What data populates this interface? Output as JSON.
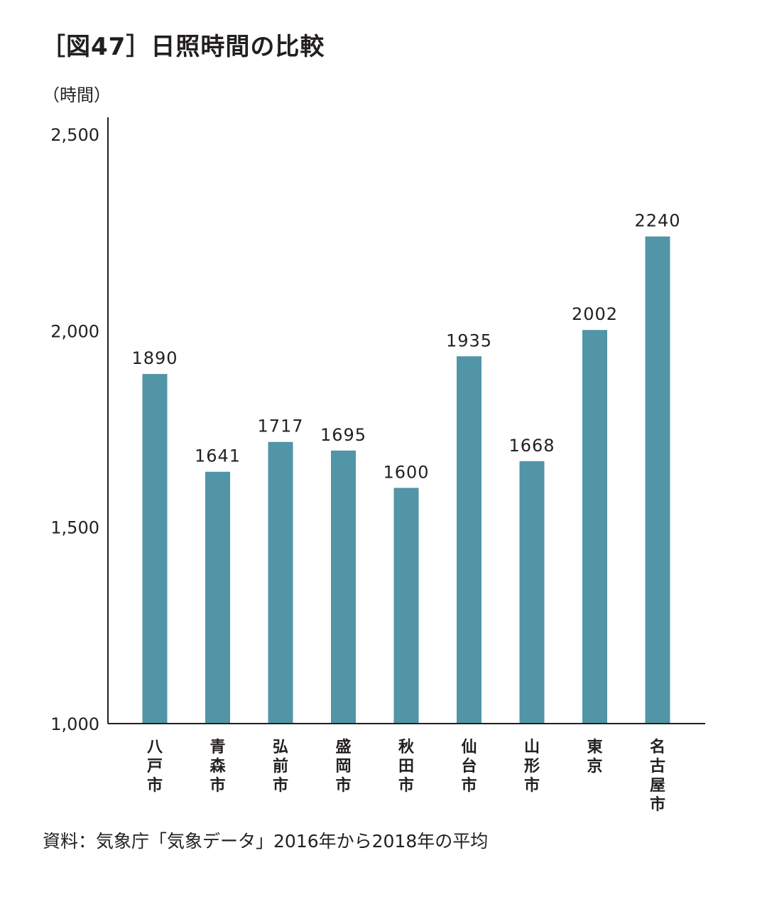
{
  "title": "［図47］日照時間の比較",
  "source": "資料：気象庁「気象データ」2016年から2018年の平均",
  "colors": {
    "bar": "#5195a6",
    "axis": "#231f20",
    "text": "#231f20"
  },
  "chart_data": {
    "type": "bar",
    "title": "［図47］日照時間の比較",
    "ylabel": "（時間）",
    "xlabel": "",
    "ylim": [
      1000,
      2500
    ],
    "yticks": [
      1000,
      1500,
      2000,
      2500
    ],
    "ytick_labels": [
      "1,000",
      "1,500",
      "2,000",
      "2,500"
    ],
    "categories": [
      "八戸市",
      "青森市",
      "弘前市",
      "盛岡市",
      "秋田市",
      "仙台市",
      "山形市",
      "東京",
      "名古屋市"
    ],
    "values": [
      1890,
      1641,
      1717,
      1695,
      1600,
      1935,
      1668,
      2002,
      2240
    ],
    "grid": false,
    "legend": "none"
  }
}
